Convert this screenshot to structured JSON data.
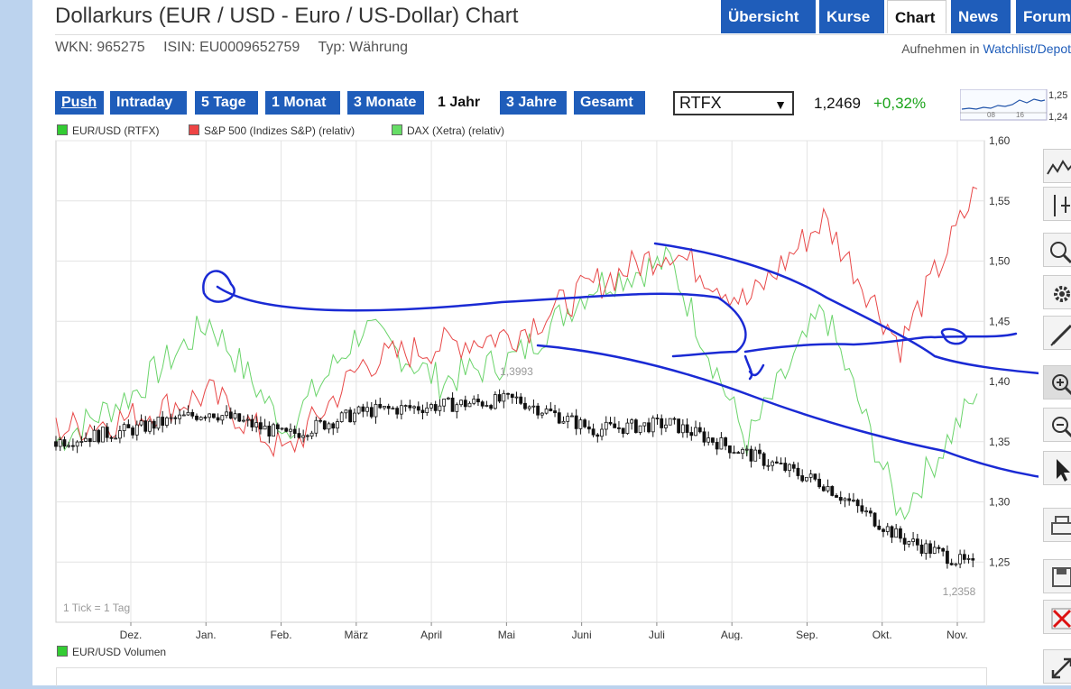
{
  "title": "Dollarkurs (EUR / USD - Euro / US-Dollar) Chart",
  "nav_tabs": [
    "Übersicht",
    "Kurse",
    "Chart",
    "News",
    "Forum"
  ],
  "active_nav": "Chart",
  "meta": {
    "wkn": "WKN: 965275",
    "isin": "ISIN: EU0009652759",
    "typ": "Typ: Währung"
  },
  "watchlist": {
    "prefix": "Aufnehmen in",
    "link": "Watchlist/Depot"
  },
  "range_buttons": [
    "Push",
    "Intraday",
    "5 Tage",
    "1 Monat",
    "3 Monate",
    "1 Jahr",
    "3 Jahre",
    "Gesamt"
  ],
  "active_range": "1 Jahr",
  "exchange": "RTFX",
  "last_price": "1,2469",
  "change": "+0,32%",
  "mini_chart": {
    "labels": [
      "08",
      "16"
    ],
    "y_labels": [
      "1,25",
      "1,24"
    ]
  },
  "legend": [
    {
      "label": "EUR/USD (RTFX)",
      "color": "#33cc33"
    },
    {
      "label": "S&P 500 (Indizes S&P) (relativ)",
      "color": "#ee4444"
    },
    {
      "label": "DAX (Xetra) (relativ)",
      "color": "#66dd66"
    }
  ],
  "tick_note": "1 Tick = 1 Tag",
  "volume_legend": "EUR/USD Volumen",
  "colors": {
    "nav_blue": "#1f5dba",
    "positive": "#1aa31a",
    "annotation": "#1a2ad4"
  },
  "chart_data": {
    "type": "line",
    "ylim": [
      1.2,
      1.6
    ],
    "y_ticks": [
      1.25,
      1.3,
      1.35,
      1.4,
      1.45,
      1.5,
      1.55,
      1.6
    ],
    "y_tick_labels": [
      "1,25",
      "1,30",
      "1,35",
      "1,40",
      "1,45",
      "1,50",
      "1,55",
      "1,60"
    ],
    "x_tick_labels": [
      "Dez.",
      "Jan.",
      "Feb.",
      "März",
      "April",
      "Mai",
      "Juni",
      "Juli",
      "Aug.",
      "Sep.",
      "Okt.",
      "Nov."
    ],
    "grid": true,
    "annotations": [
      {
        "text": "1,3993",
        "value": 1.3993
      },
      {
        "text": "1,2358",
        "value": 1.2358
      }
    ],
    "series": [
      {
        "name": "EUR/USD (RTFX)",
        "style": "candlestick",
        "x": [
          "Nov.",
          "Dez.",
          "Jan.",
          "Feb.",
          "März",
          "April",
          "Mai",
          "Juni",
          "Juli",
          "Aug.",
          "Sep.",
          "Okt.",
          "Nov."
        ],
        "values": [
          1.35,
          1.36,
          1.375,
          1.355,
          1.375,
          1.38,
          1.385,
          1.36,
          1.365,
          1.34,
          1.315,
          1.27,
          1.245
        ]
      },
      {
        "name": "S&P 500 (Indizes S&P) (relativ)",
        "x": [
          "Nov.",
          "Dez.",
          "Jan.",
          "Feb.",
          "März",
          "April",
          "Mai",
          "Juni",
          "Juli",
          "Aug.",
          "Sep.",
          "Okt.",
          "Nov."
        ],
        "values": [
          1.36,
          1.37,
          1.39,
          1.34,
          1.415,
          1.43,
          1.44,
          1.48,
          1.51,
          1.465,
          1.535,
          1.43,
          1.56
        ]
      },
      {
        "name": "DAX (Xetra) (relativ)",
        "x": [
          "Nov.",
          "Dez.",
          "Jan.",
          "Feb.",
          "März",
          "April",
          "Mai",
          "Juni",
          "Juli",
          "Aug.",
          "Sep.",
          "Okt.",
          "Nov."
        ],
        "values": [
          1.35,
          1.39,
          1.45,
          1.36,
          1.445,
          1.4,
          1.42,
          1.48,
          1.5,
          1.35,
          1.46,
          1.29,
          1.39
        ]
      }
    ]
  }
}
